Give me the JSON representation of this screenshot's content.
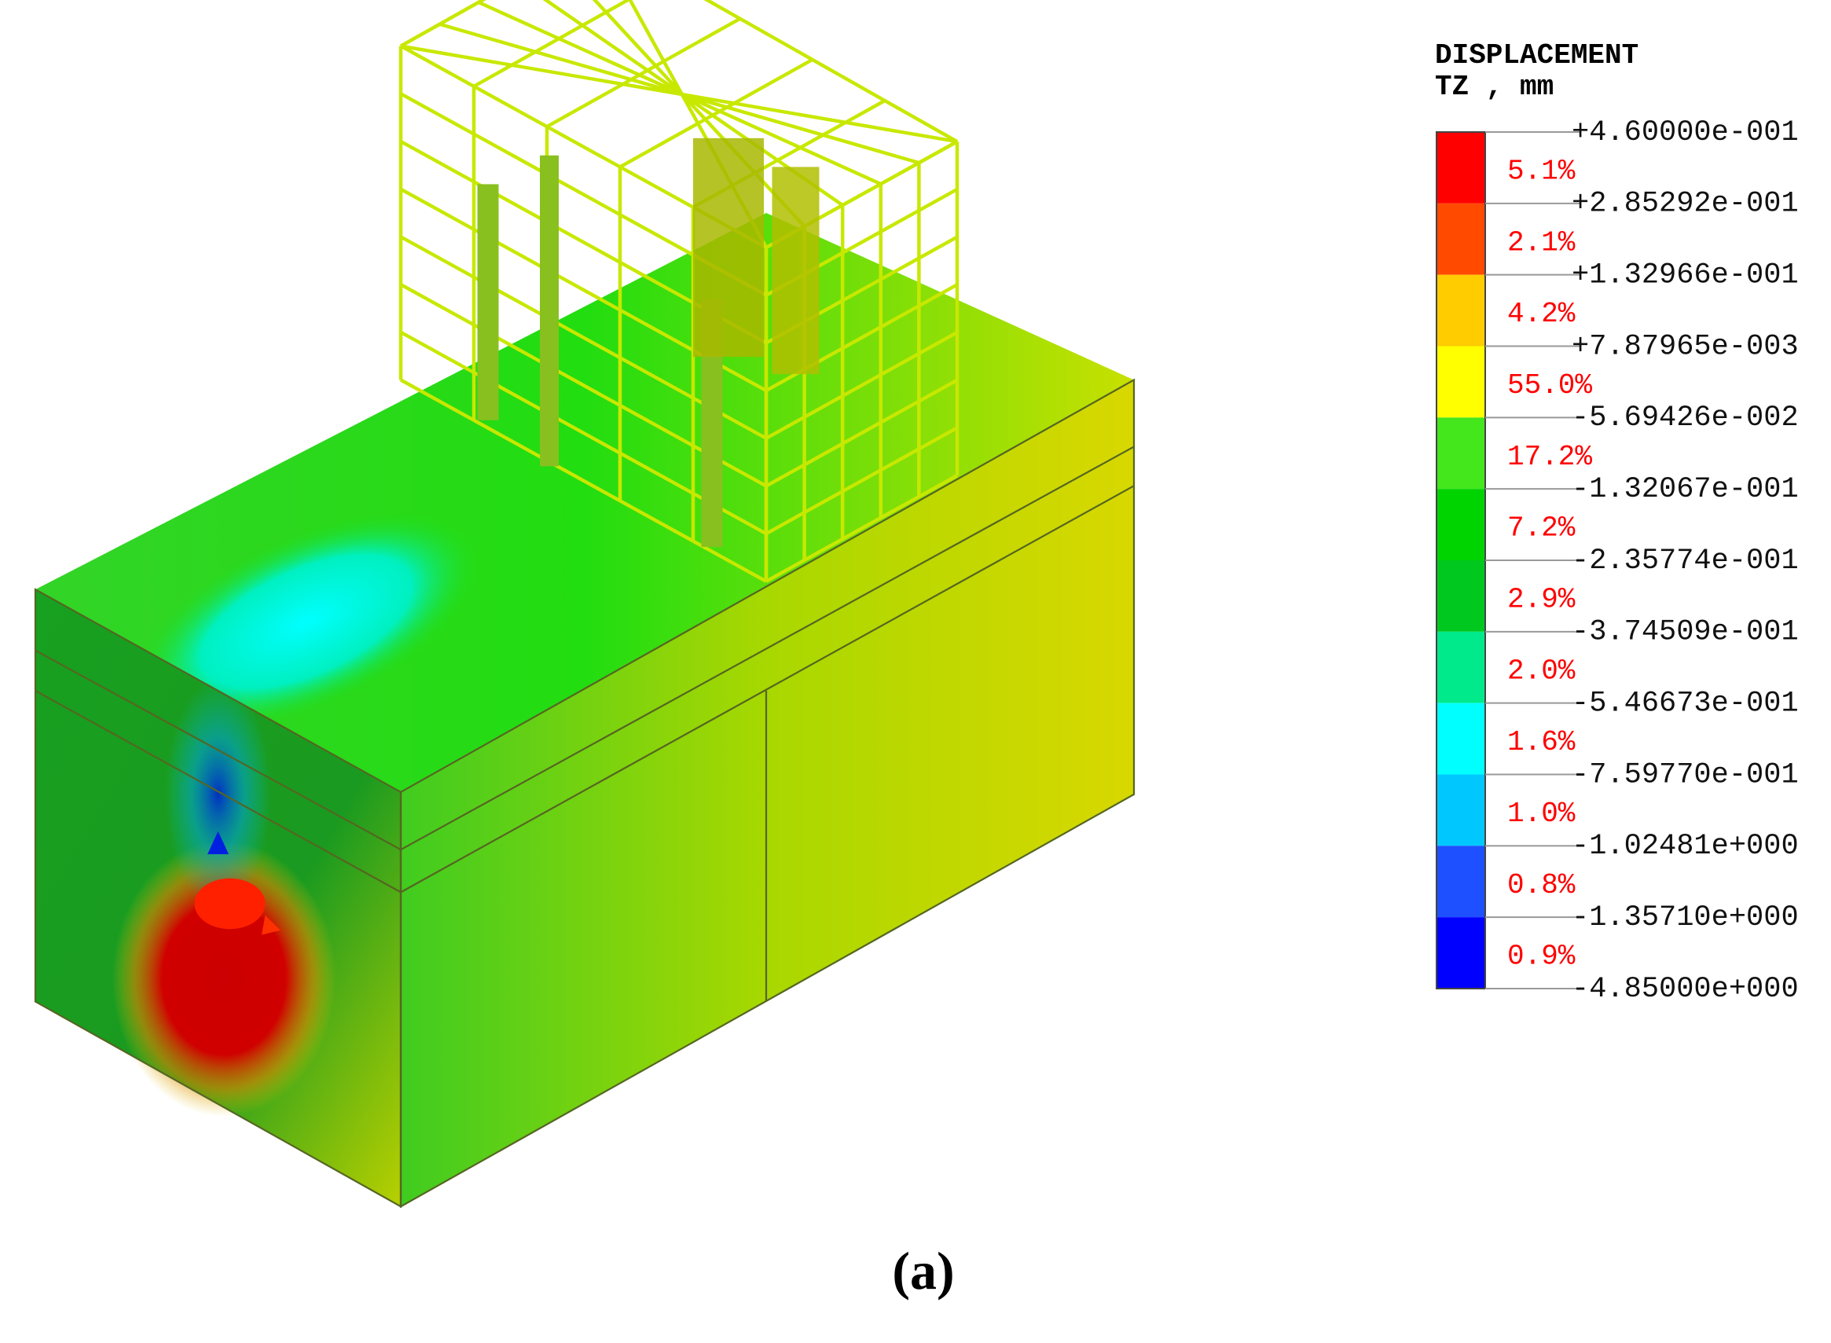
{
  "legend": {
    "title": "DISPLACEMENT",
    "subtitle": "TZ , mm",
    "levels": [
      "+4.60000e-001",
      "+2.85292e-001",
      "+1.32966e-001",
      "+7.87965e-003",
      "-5.69426e-002",
      "-1.32067e-001",
      "-2.35774e-001",
      "-3.74509e-001",
      "-5.46673e-001",
      "-7.59770e-001",
      "-1.02481e+000",
      "-1.35710e+000",
      "-4.85000e+000"
    ],
    "bands": [
      {
        "label": "5.1%",
        "color": "#ff0000"
      },
      {
        "label": "2.1%",
        "color": "#ff4a00"
      },
      {
        "label": "4.2%",
        "color": "#ffcc00"
      },
      {
        "label": "55.0%",
        "color": "#ffff00"
      },
      {
        "label": "17.2%",
        "color": "#44e61c"
      },
      {
        "label": "7.2%",
        "color": "#00d400"
      },
      {
        "label": "2.9%",
        "color": "#00c81e"
      },
      {
        "label": "2.0%",
        "color": "#00ea8c"
      },
      {
        "label": "1.6%",
        "color": "#00ffff"
      },
      {
        "label": "1.0%",
        "color": "#00c8ff"
      },
      {
        "label": "0.8%",
        "color": "#1e50ff"
      },
      {
        "label": "0.9%",
        "color": "#0000ff"
      }
    ]
  },
  "caption": "(a)"
}
